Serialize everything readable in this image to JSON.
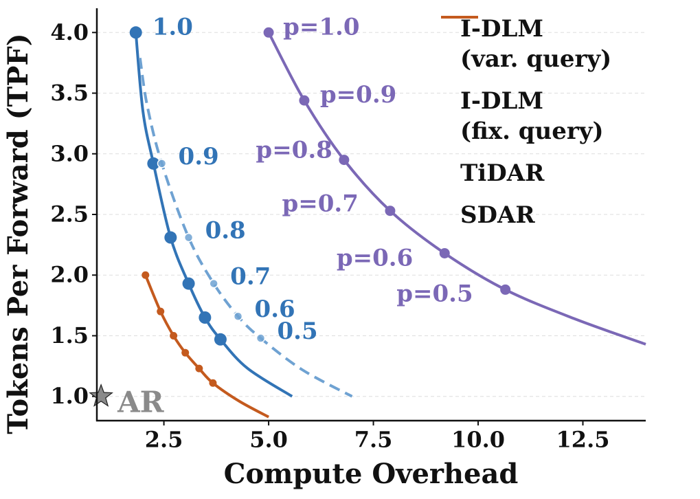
{
  "chart_data": {
    "type": "line",
    "x_label": "Compute Overhead",
    "y_label": "Tokens Per Forward (TPF)",
    "xlim": [
      0.9,
      14.0
    ],
    "ylim": [
      0.8,
      4.2
    ],
    "xticks": [
      2.5,
      {
        "value": 5,
        "label": "5.0"
      },
      7.5,
      {
        "value": 10,
        "label": "10.0"
      },
      12.5
    ],
    "yticks": [
      {
        "value": 1,
        "label": "1.0"
      },
      1.5,
      {
        "value": 2,
        "label": "2.0"
      },
      2.5,
      {
        "value": 3,
        "label": "3.0"
      },
      3.5,
      {
        "value": 4,
        "label": "4.0"
      }
    ],
    "grid": "y",
    "legend": "upper right",
    "series": [
      {
        "name": "I-DLM\n(var. query)",
        "color": "#3274b6",
        "style": "solid",
        "x": [
          1.83,
          2.0,
          2.25,
          2.66,
          3.09,
          3.48,
          3.85,
          4.5,
          5.56
        ],
        "values": [
          4.0,
          3.35,
          2.92,
          2.31,
          1.93,
          1.65,
          1.47,
          1.23,
          1.0
        ],
        "points": {
          "x": [
            1.83,
            2.25,
            2.66,
            3.09,
            3.48,
            3.85
          ],
          "values": [
            4.0,
            2.92,
            2.31,
            1.93,
            1.65,
            1.47
          ],
          "labels": [
            "1.0",
            null,
            null,
            null,
            null,
            null
          ]
        }
      },
      {
        "name": "I-DLM\n(fix. query)",
        "color": "#6fa2d2",
        "label_color": "#3274b6",
        "style": "dashed",
        "x": [
          1.93,
          2.1,
          2.45,
          3.09,
          3.69,
          4.27,
          4.81,
          5.8,
          6.99
        ],
        "values": [
          3.79,
          3.4,
          2.92,
          2.31,
          1.93,
          1.66,
          1.48,
          1.22,
          1.0
        ],
        "points": {
          "x": [
            2.45,
            3.09,
            3.69,
            4.27,
            4.81
          ],
          "values": [
            2.92,
            2.31,
            1.93,
            1.66,
            1.48
          ],
          "labels": [
            "0.9",
            "0.8",
            "0.7",
            "0.6",
            "0.5"
          ]
        }
      },
      {
        "name": "TiDAR",
        "color": "#7b68b6",
        "style": "solid",
        "x": [
          5.0,
          5.85,
          6.8,
          7.9,
          9.2,
          10.65,
          12.3,
          14.0
        ],
        "values": [
          4.0,
          3.44,
          2.95,
          2.53,
          2.18,
          1.88,
          1.64,
          1.43
        ],
        "points": {
          "x": [
            5.0,
            5.85,
            6.8,
            7.9,
            9.2,
            10.65
          ],
          "values": [
            4.0,
            3.44,
            2.95,
            2.53,
            2.18,
            1.88
          ],
          "labels": [
            "p=1.0",
            "p=0.9",
            "p=0.8",
            "p=0.7",
            "p=0.6",
            "p=0.5"
          ]
        }
      },
      {
        "name": "SDAR",
        "color": "#c45a1e",
        "style": "solid",
        "x": [
          2.06,
          2.42,
          2.73,
          3.01,
          3.34,
          3.67,
          4.3,
          5.0
        ],
        "values": [
          2.0,
          1.7,
          1.5,
          1.36,
          1.23,
          1.11,
          0.96,
          0.83
        ],
        "points": {
          "x": [
            2.06,
            2.42,
            2.73,
            3.01,
            3.34,
            3.67
          ],
          "values": [
            2.0,
            1.7,
            1.5,
            1.36,
            1.23,
            1.11
          ]
        }
      }
    ],
    "reference": {
      "name": "AR",
      "x": 1.0,
      "y": 1.0,
      "color": "#8a8a8a"
    }
  }
}
